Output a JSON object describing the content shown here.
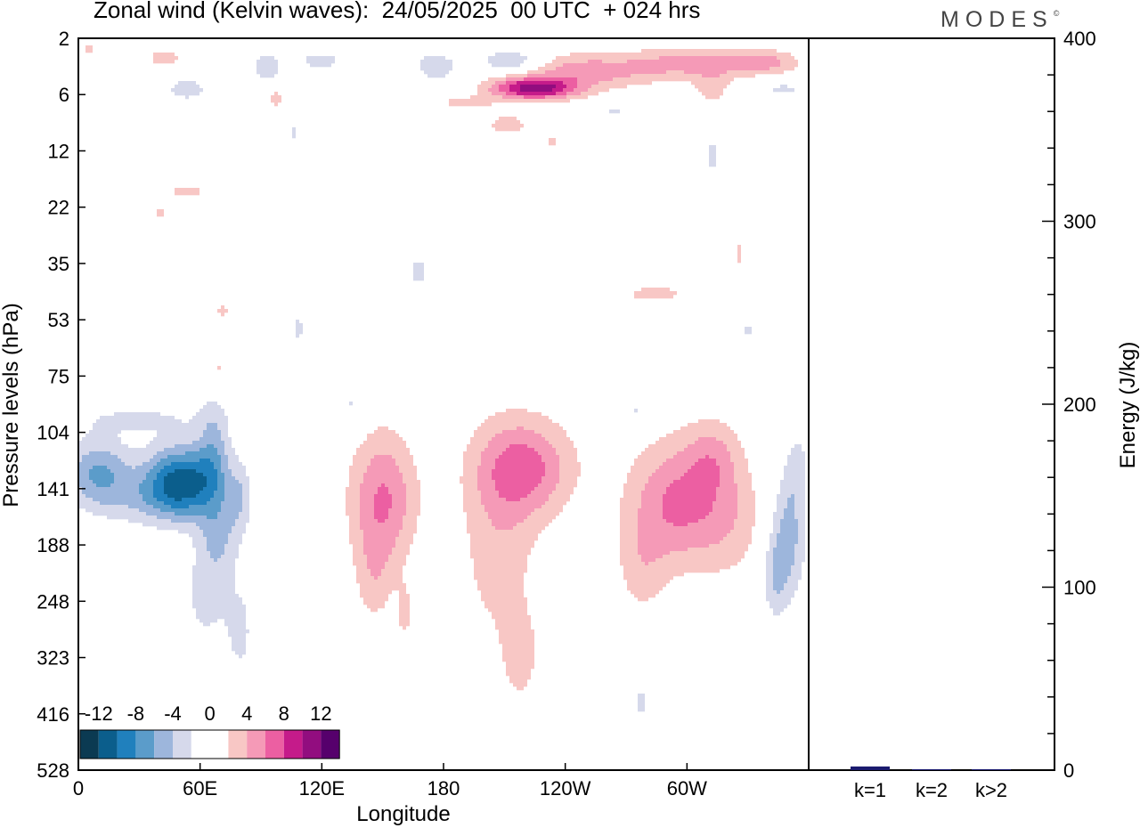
{
  "title": "Zonal wind (Kelvin waves):  24/05/2025  00 UTC  + 024 hrs",
  "logo": "MODES",
  "colors": {
    "neg": [
      "#0b3a52",
      "#0b5e8c",
      "#2080bd",
      "#5b9cca",
      "#9db6dc",
      "#d6d9eb"
    ],
    "zero": "#ffffff",
    "pos": [
      "#f8c7c5",
      "#f59ab7",
      "#ec5fa2",
      "#c51b8a",
      "#920d7f",
      "#56006c"
    ],
    "bar": "#1a1a6e"
  },
  "chart_data": [
    {
      "type": "heatmap",
      "title": "Zonal wind (Kelvin waves):  24/05/2025  00 UTC  + 024 hrs",
      "xlabel": "Longitude",
      "ylabel": "Pressure levels (hPa)",
      "x_ticks": [
        "0",
        "60E",
        "120E",
        "180",
        "120W",
        "60W"
      ],
      "x_tick_values": [
        0,
        60,
        120,
        180,
        240,
        300
      ],
      "xlim": [
        0,
        360
      ],
      "y_ticks": [
        "2",
        "6",
        "12",
        "22",
        "35",
        "53",
        "75",
        "104",
        "141",
        "188",
        "248",
        "323",
        "416",
        "528"
      ],
      "y_scale": "log-pressure, top = 2 hPa",
      "colorbar_labels": [
        "-12",
        "-8",
        "-4",
        "0",
        "4",
        "8",
        "12"
      ],
      "colorbar_placement": "bottom-left",
      "features": [
        {
          "lon": 55,
          "p": 141,
          "value": -10
        },
        {
          "lon": 20,
          "p": 130,
          "value": -6
        },
        {
          "lon": 75,
          "p": 240,
          "value": -3
        },
        {
          "lon": 150,
          "p": 150,
          "value": 6
        },
        {
          "lon": 215,
          "p": 130,
          "value": 6
        },
        {
          "lon": 215,
          "p": 240,
          "value": 2
        },
        {
          "lon": 295,
          "p": 150,
          "value": 6
        },
        {
          "lon": 350,
          "p": 200,
          "value": -5
        },
        {
          "lon": 225,
          "p": 6,
          "value": 10
        },
        {
          "lon": 270,
          "p": 4,
          "value": 8
        },
        {
          "lon": 210,
          "p": 3,
          "value": -5
        },
        {
          "lon": 320,
          "p": 50,
          "value": 3
        }
      ]
    },
    {
      "type": "bar",
      "categories": [
        "k=1",
        "k=2",
        "k>2"
      ],
      "values": [
        2,
        0.5,
        0.5
      ],
      "ylabel": "Energy (J/kg)",
      "ylim": [
        0,
        400
      ],
      "y_ticks": [
        "0",
        "100",
        "200",
        "300",
        "400"
      ]
    }
  ]
}
